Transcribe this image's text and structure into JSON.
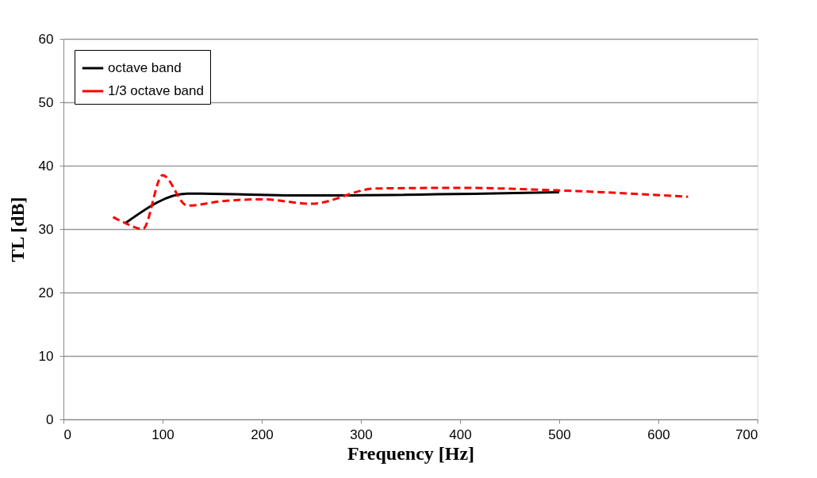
{
  "chart_data": {
    "type": "line",
    "xlabel": "Frequency [Hz]",
    "ylabel": "TL [dB]",
    "xlim": [
      0,
      700
    ],
    "xticks": [
      0,
      100,
      200,
      300,
      400,
      500,
      600,
      700
    ],
    "ylim": [
      0,
      60
    ],
    "yticks": [
      0,
      10,
      20,
      30,
      40,
      50,
      60
    ],
    "grid": "y",
    "legend": "top left",
    "marker": "none",
    "series": [
      {
        "name": "octave band",
        "color": "#000000",
        "line_style": "solid",
        "x": [
          63,
          125,
          250,
          500
        ],
        "values": [
          31.0,
          35.6,
          35.3,
          35.8
        ]
      },
      {
        "name": "1/3 octave band",
        "color": "#ff0000",
        "line_style": "dashed",
        "x": [
          50,
          63,
          80,
          100,
          125,
          160,
          200,
          250,
          315,
          400,
          500,
          630
        ],
        "values": [
          31.9,
          30.9,
          30.0,
          38.5,
          33.7,
          34.4,
          34.7,
          34.0,
          36.4,
          36.5,
          36.1,
          35.1
        ]
      }
    ]
  }
}
